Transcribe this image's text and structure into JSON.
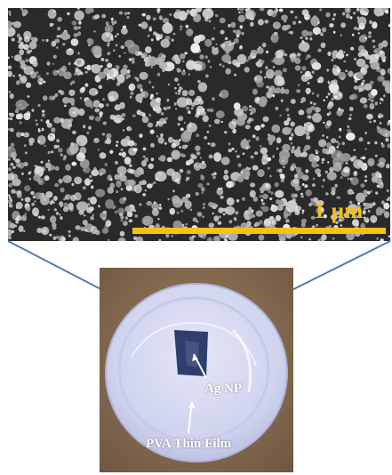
{
  "sem_image": {
    "scale_bar_label": "1 μm",
    "scale_bar_color": "#f2c21a",
    "background_color": "#2a2a2a",
    "particle_color": "#cfcfcf"
  },
  "photo": {
    "labels": {
      "ag_np": "Ag NP",
      "pva_film": "PVA Thin Film"
    },
    "label_color": "#ffffff",
    "background_color": "#8a6e52",
    "dish_color": "#d9dcf2"
  },
  "connector_color": "#4f7bb3"
}
